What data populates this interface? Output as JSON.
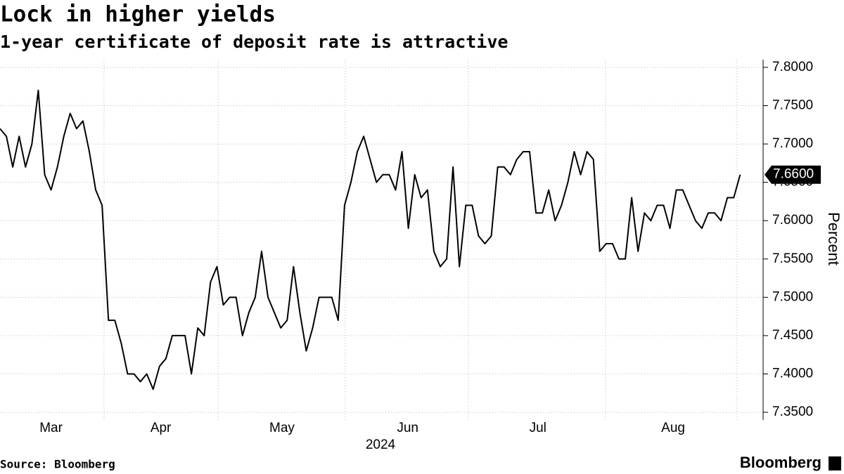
{
  "chart_data": {
    "type": "line",
    "title": "Lock in higher yields",
    "subtitle": "1-year certificate of deposit rate is attractive",
    "y_axis_label": "Percent",
    "x_axis_label": "2024",
    "source": "Source: Bloomberg",
    "brand": "Bloomberg",
    "current_label": "7.6600",
    "color": "#000000",
    "grid": true,
    "values": [
      7.72,
      7.71,
      7.67,
      7.71,
      7.67,
      7.7,
      7.77,
      7.66,
      7.64,
      7.67,
      7.71,
      7.74,
      7.72,
      7.73,
      7.69,
      7.64,
      7.62,
      7.47,
      7.47,
      7.44,
      7.4,
      7.4,
      7.39,
      7.4,
      7.38,
      7.41,
      7.42,
      7.45,
      7.45,
      7.45,
      7.4,
      7.46,
      7.45,
      7.52,
      7.54,
      7.49,
      7.5,
      7.5,
      7.45,
      7.48,
      7.5,
      7.56,
      7.5,
      7.48,
      7.46,
      7.47,
      7.54,
      7.48,
      7.43,
      7.46,
      7.5,
      7.5,
      7.5,
      7.47,
      7.62,
      7.65,
      7.69,
      7.71,
      7.68,
      7.65,
      7.66,
      7.66,
      7.64,
      7.69,
      7.59,
      7.66,
      7.63,
      7.64,
      7.56,
      7.54,
      7.55,
      7.67,
      7.54,
      7.62,
      7.62,
      7.58,
      7.57,
      7.58,
      7.67,
      7.67,
      7.66,
      7.68,
      7.69,
      7.69,
      7.61,
      7.61,
      7.64,
      7.6,
      7.62,
      7.65,
      7.69,
      7.66,
      7.69,
      7.68,
      7.56,
      7.57,
      7.57,
      7.55,
      7.55,
      7.63,
      7.56,
      7.61,
      7.6,
      7.62,
      7.62,
      7.59,
      7.64,
      7.64,
      7.62,
      7.6,
      7.59,
      7.61,
      7.61,
      7.6,
      7.63,
      7.63,
      7.66
    ],
    "xlim": [
      0,
      119.6
    ],
    "xticks": [
      {
        "value": 8,
        "label": "Mar"
      },
      {
        "value": 25.2,
        "label": "Apr"
      },
      {
        "value": 44.2,
        "label": "May"
      },
      {
        "value": 63.9,
        "label": "Jun"
      },
      {
        "value": 84.3,
        "label": "Jul"
      },
      {
        "value": 105.5,
        "label": "Aug"
      }
    ],
    "xgrid": [
      16.3,
      34.2,
      54.1,
      73.4,
      94.9,
      115.5
    ],
    "ylim": [
      7.34,
      7.81
    ],
    "yticks": [
      {
        "value": 7.35,
        "label": "7.3500"
      },
      {
        "value": 7.4,
        "label": "7.4000"
      },
      {
        "value": 7.45,
        "label": "7.4500"
      },
      {
        "value": 7.5,
        "label": "7.5000"
      },
      {
        "value": 7.55,
        "label": "7.5500"
      },
      {
        "value": 7.6,
        "label": "7.6000"
      },
      {
        "value": 7.65,
        "label": "7.6500"
      },
      {
        "value": 7.7,
        "label": "7.7000"
      },
      {
        "value": 7.75,
        "label": "7.7500"
      },
      {
        "value": 7.8,
        "label": "7.8000"
      }
    ]
  }
}
